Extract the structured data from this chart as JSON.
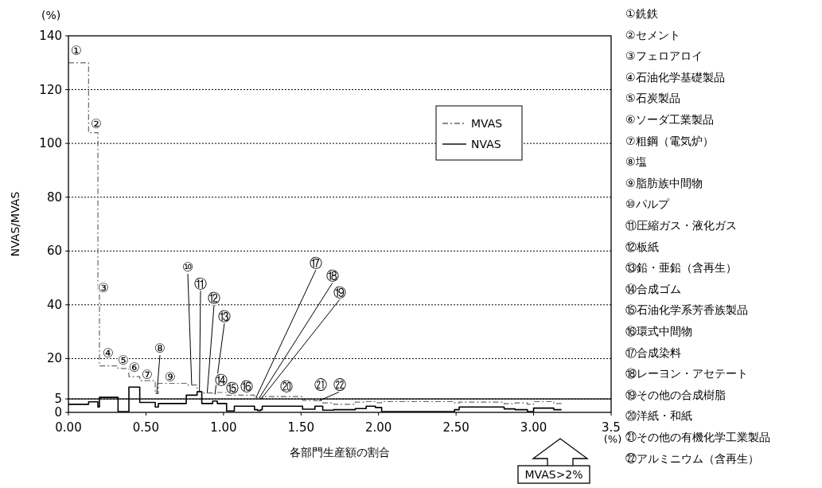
{
  "chart_data": {
    "type": "step",
    "xlabel": "各部門生産額の割合",
    "ylabel": "NVAS/MVAS",
    "xlim": [
      0,
      3.5
    ],
    "xticks": [
      {
        "value": 0,
        "label": "0.00"
      },
      {
        "value": 0.5,
        "label": "0.50"
      },
      {
        "value": 1,
        "label": "1.00"
      },
      {
        "value": 1.5,
        "label": "1.50"
      },
      {
        "value": 2,
        "label": "2.00"
      },
      {
        "value": 2.5,
        "label": "2.50"
      },
      {
        "value": 3,
        "label": "3.00"
      },
      {
        "value": 3.5,
        "label": "3.5"
      }
    ],
    "ylim": [
      0,
      140
    ],
    "yticks": [
      0,
      5,
      20,
      40,
      60,
      80,
      100,
      120,
      140
    ],
    "grid": "y",
    "legend": "top right",
    "series": [
      {
        "name": "MVAS",
        "color": "#666666",
        "line_style": "dashed",
        "x": [
          0,
          0.13,
          0.19,
          0.2,
          0.32,
          0.39,
          0.46,
          0.56,
          0.58,
          0.76,
          0.83,
          0.86,
          0.93,
          0.96,
          1.02,
          1.07,
          1.2,
          1.22,
          1.24,
          1.25,
          1.51,
          1.59,
          1.64,
          1.71,
          1.85,
          1.92,
          1.98,
          2.02,
          2.49,
          2.52,
          2.81,
          2.88,
          2.96,
          3,
          3.13,
          3.18
        ],
        "values": [
          130,
          104,
          45,
          17.3,
          16.3,
          13.3,
          11.8,
          7,
          10.8,
          10.2,
          7.7,
          7.2,
          6.9,
          7.4,
          6.4,
          6.4,
          5.5,
          5.3,
          5.2,
          5.9,
          4.5,
          4.3,
          3.5,
          3,
          3.8,
          4,
          3.6,
          4,
          3.5,
          3.8,
          3.2,
          3.5,
          3,
          4,
          3.3,
          3.3
        ]
      },
      {
        "name": "NVAS",
        "color": "#000000",
        "line_style": "solid",
        "x": [
          0,
          0.13,
          0.19,
          0.2,
          0.32,
          0.39,
          0.46,
          0.56,
          0.58,
          0.76,
          0.83,
          0.86,
          0.93,
          0.96,
          1.02,
          1.07,
          1.2,
          1.22,
          1.24,
          1.25,
          1.51,
          1.59,
          1.64,
          1.71,
          1.85,
          1.92,
          1.98,
          2.02,
          2.49,
          2.52,
          2.81,
          2.88,
          2.96,
          3,
          3.13,
          3.18
        ],
        "values": [
          3,
          3.9,
          2,
          5.6,
          0.3,
          9.4,
          3.7,
          2,
          3.3,
          6.4,
          7.7,
          3.3,
          4.2,
          3.3,
          0.5,
          2.3,
          1,
          0.7,
          1,
          2.3,
          1.2,
          2.3,
          0.8,
          1,
          1.4,
          2.3,
          1.8,
          0.3,
          1,
          2,
          1.3,
          1,
          0.3,
          1.6,
          1,
          1
        ]
      }
    ],
    "ref_lines": [
      {
        "axis": "y",
        "value": 5,
        "color": "#000000",
        "line_style": "solid"
      }
    ],
    "annotations": [
      "(%)",
      "(%)",
      "MVAS>2%",
      "①銑鉄",
      "②セメント",
      "③フェロアロイ",
      "④石油化学基礎製品",
      "⑤石炭製品",
      "⑥ソーダ工業製品",
      "⑦粗鋼（電気炉）",
      "⑧塩",
      "⑨脂肪族中間物",
      "⑩パルプ",
      "⑪圧縮ガス・液化ガス",
      "⑫板紙",
      "⑬鉛・亜鉛（含再生）",
      "⑭合成ゴム",
      "⑮石油化学系芳香族製品",
      "⑯環式中間物",
      "⑰合成染料",
      "⑱レーヨン・アセテート",
      "⑲その他の合成樹脂",
      "⑳洋紙・和紙",
      "㉑その他の有機化学工業製品",
      "㉒アルミニウム（含再生）",
      {
        "text": "①",
        "x": 0.07,
        "y": 130
      },
      {
        "text": "②",
        "x": 0.16,
        "y": 104
      },
      {
        "text": "③",
        "x": 0.195,
        "y": 45
      },
      {
        "text": "④",
        "x": 0.26,
        "y": 17.3
      },
      {
        "text": "⑤",
        "x": 0.355,
        "y": 16.3
      },
      {
        "text": "⑥",
        "x": 0.425,
        "y": 13.3
      },
      {
        "text": "⑦",
        "x": 0.51,
        "y": 11.8
      },
      {
        "text": "⑧",
        "x": 0.57,
        "y": 7
      },
      {
        "text": "⑨",
        "x": 0.67,
        "y": 10.8
      },
      {
        "text": "⑩",
        "x": 0.795,
        "y": 10.2
      },
      {
        "text": "⑪",
        "x": 0.845,
        "y": 7.7
      },
      {
        "text": "⑫",
        "x": 0.895,
        "y": 7.2
      },
      {
        "text": "⑬",
        "x": 0.945,
        "y": 6.9
      },
      {
        "text": "⑭",
        "x": 0.99,
        "y": 7.4
      },
      {
        "text": "⑮",
        "x": 1.045,
        "y": 6.4
      },
      {
        "text": "⑯",
        "x": 1.135,
        "y": 6.4
      },
      {
        "text": "⑰",
        "x": 1.21,
        "y": 5.5
      },
      {
        "text": "⑱",
        "x": 1.23,
        "y": 5.3
      },
      {
        "text": "⑲",
        "x": 1.245,
        "y": 5.2
      },
      {
        "text": "⑳",
        "x": 1.38,
        "y": 5.9
      },
      {
        "text": "㉑",
        "x": 1.55,
        "y": 4.5
      },
      {
        "text": "㉒",
        "x": 1.615,
        "y": 4.3
      }
    ]
  }
}
